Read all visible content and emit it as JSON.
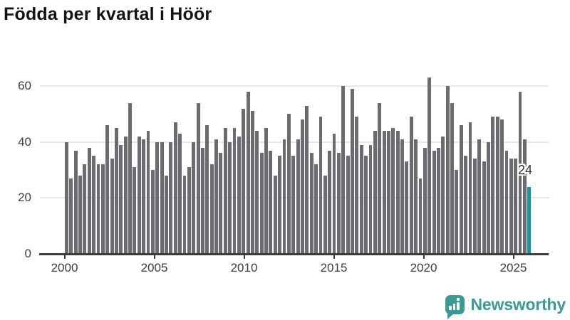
{
  "title": "Födda per kvartal i Höör",
  "annotation": {
    "text": "24"
  },
  "branding": {
    "logo_text": "Newsworthy",
    "color": "#3a9a94"
  },
  "colors": {
    "bar": "#6b6b70",
    "highlight": "#16959e",
    "grid": "#e8e8e8",
    "axis": "#3d3d3d",
    "title": "#141414"
  },
  "chart_data": {
    "type": "bar",
    "title": "Födda per kvartal i Höör",
    "frequency": "quarterly",
    "x_start": "2000-Q1",
    "x_end": "2025-Q3",
    "values": [
      40,
      27,
      37,
      28,
      32,
      38,
      35,
      32,
      32,
      46,
      34,
      45,
      39,
      42,
      54,
      31,
      42,
      41,
      44,
      30,
      40,
      40,
      28,
      40,
      47,
      43,
      28,
      31,
      40,
      54,
      38,
      46,
      32,
      41,
      36,
      45,
      40,
      45,
      42,
      52,
      58,
      51,
      44,
      36,
      45,
      37,
      28,
      35,
      41,
      50,
      35,
      41,
      48,
      53,
      36,
      32,
      49,
      28,
      37,
      43,
      36,
      60,
      35,
      59,
      49,
      39,
      35,
      39,
      44,
      54,
      44,
      44,
      45,
      44,
      41,
      33,
      49,
      41,
      27,
      38,
      63,
      37,
      38,
      42,
      60,
      54,
      30,
      46,
      35,
      47,
      34,
      41,
      33,
      40,
      49,
      49,
      48,
      37,
      34,
      34,
      58,
      41,
      24
    ],
    "highlight_last": {
      "index": 102,
      "value": 24,
      "label": "24"
    },
    "xticks": [
      "2000",
      "2005",
      "2010",
      "2015",
      "2020",
      "2025"
    ],
    "yticks": [
      0,
      20,
      40,
      60
    ],
    "ylim": [
      0,
      65
    ],
    "grid": "horizontal",
    "legend": "none"
  }
}
